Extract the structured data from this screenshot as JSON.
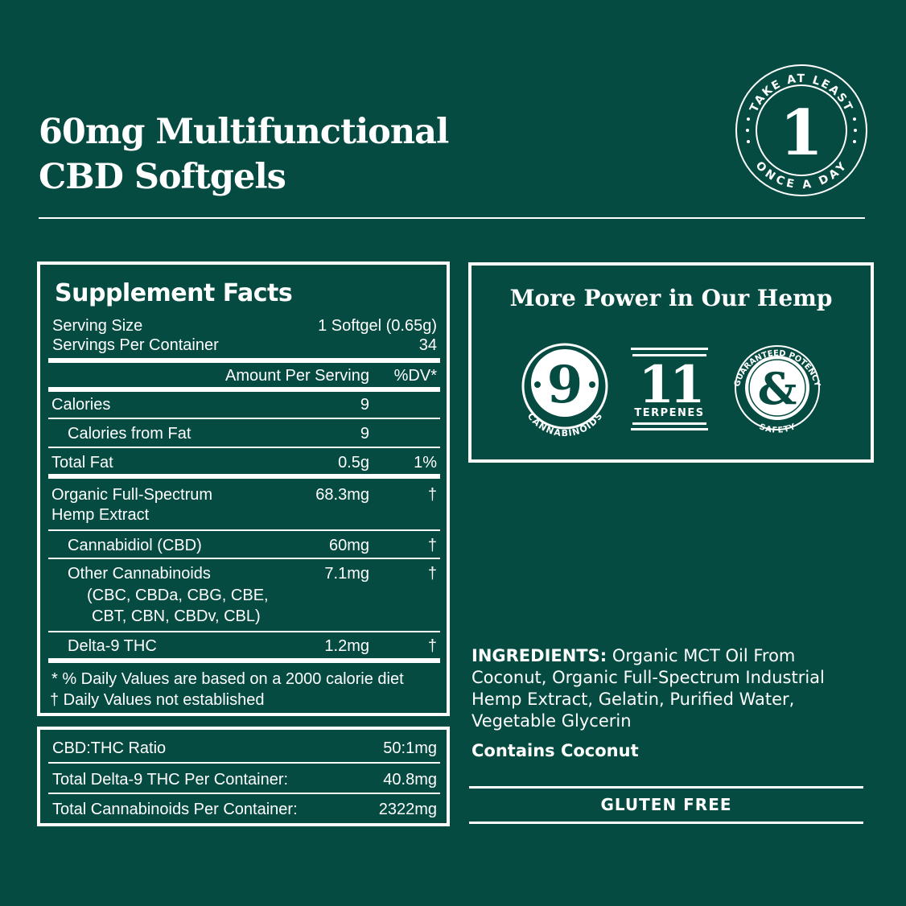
{
  "title": {
    "line1": "60mg Multifunctional",
    "line2": "CBD Softgels"
  },
  "badge": {
    "top": "TAKE AT LEAST",
    "number": "1",
    "bottom": "ONCE A DAY"
  },
  "facts": {
    "heading": "Supplement Facts",
    "serving_size_label": "Serving Size",
    "serving_size": "1 Softgel (0.65g)",
    "servings_label": "Servings Per Container",
    "servings": "34",
    "amount_header": "Amount Per Serving",
    "dv_header": "%DV*",
    "rows": [
      {
        "name": "Calories",
        "amount": "9",
        "dv": ""
      },
      {
        "name": "Calories from Fat",
        "amount": "9",
        "dv": ""
      },
      {
        "name": "Total Fat",
        "amount": "0.5g",
        "dv": "1%"
      },
      {
        "name": "Organic Full-Spectrum",
        "name2": "Hemp Extract",
        "amount": "68.3mg",
        "dv": "†"
      },
      {
        "name": "Cannabidiol (CBD)",
        "amount": "60mg",
        "dv": "†"
      },
      {
        "name": "Other Cannabinoids",
        "name2": "(CBC, CBDa, CBG, CBE,",
        "name3": "CBT, CBN, CBDv, CBL)",
        "amount": "7.1mg",
        "dv": "†"
      },
      {
        "name": "Delta-9 THC",
        "amount": "1.2mg",
        "dv": "†"
      }
    ],
    "footnote1": "* % Daily Values are based on a 2000 calorie diet",
    "footnote2": "†  Daily Values not established"
  },
  "ratio": {
    "rows": [
      {
        "label": "CBD:THC Ratio",
        "value": "50:1mg"
      },
      {
        "label": "Total Delta-9 THC Per Container:",
        "value": "40.8mg"
      },
      {
        "label": "Total Cannabinoids Per Container:",
        "value": "2322mg"
      }
    ]
  },
  "power": {
    "heading": "More Power in Our Hemp",
    "icons": [
      {
        "number": "9",
        "label": "CANNABINOIDS"
      },
      {
        "number": "11",
        "label": "TERPENES"
      },
      {
        "number": "&",
        "label_top": "GUARANTEED POTENCY",
        "label_bottom": "SAFETY"
      }
    ]
  },
  "ingredients": {
    "label": "INGREDIENTS:",
    "text": " Organic MCT Oil From Coconut, Organic Full-Spectrum Industrial Hemp Extract, Gelatin, Purified Water, Vegetable Glycerin",
    "allergen": "Contains Coconut"
  },
  "gluten": "GLUTEN FREE",
  "colors": {
    "background": "#064b41",
    "foreground": "#ffffff"
  }
}
